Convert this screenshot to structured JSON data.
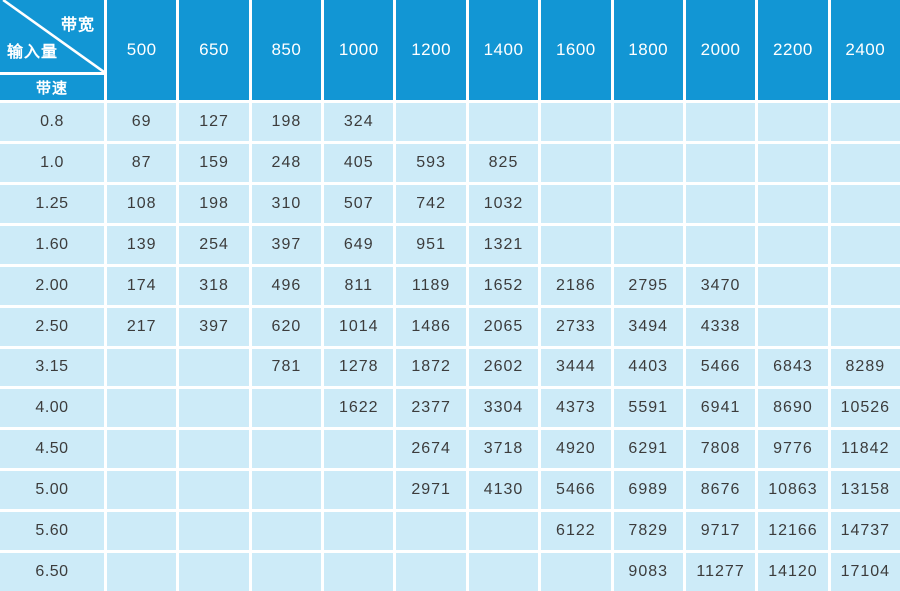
{
  "colors": {
    "header_bg": "#1296d4",
    "cell_bg": "#cdebf8",
    "grid": "#ffffff",
    "header_text": "#ffffff",
    "cell_text": "#3c3c3c"
  },
  "chart_data": {
    "type": "table",
    "title": "",
    "corner": {
      "top_right": "带宽",
      "bottom_left": "输入量",
      "sub_row": "带速"
    },
    "columns": [
      "500",
      "650",
      "850",
      "1000",
      "1200",
      "1400",
      "1600",
      "1800",
      "2000",
      "2200",
      "2400"
    ],
    "rows": [
      {
        "label": "0.8",
        "values": [
          "69",
          "127",
          "198",
          "324",
          "",
          "",
          "",
          "",
          "",
          "",
          ""
        ]
      },
      {
        "label": "1.0",
        "values": [
          "87",
          "159",
          "248",
          "405",
          "593",
          "825",
          "",
          "",
          "",
          "",
          ""
        ]
      },
      {
        "label": "1.25",
        "values": [
          "108",
          "198",
          "310",
          "507",
          "742",
          "1032",
          "",
          "",
          "",
          "",
          ""
        ]
      },
      {
        "label": "1.60",
        "values": [
          "139",
          "254",
          "397",
          "649",
          "951",
          "1321",
          "",
          "",
          "",
          "",
          ""
        ]
      },
      {
        "label": "2.00",
        "values": [
          "174",
          "318",
          "496",
          "811",
          "1189",
          "1652",
          "2186",
          "2795",
          "3470",
          "",
          ""
        ]
      },
      {
        "label": "2.50",
        "values": [
          "217",
          "397",
          "620",
          "1014",
          "1486",
          "2065",
          "2733",
          "3494",
          "4338",
          "",
          ""
        ]
      },
      {
        "label": "3.15",
        "values": [
          "",
          "",
          "781",
          "1278",
          "1872",
          "2602",
          "3444",
          "4403",
          "5466",
          "6843",
          "8289"
        ]
      },
      {
        "label": "4.00",
        "values": [
          "",
          "",
          "",
          "1622",
          "2377",
          "3304",
          "4373",
          "5591",
          "6941",
          "8690",
          "10526"
        ]
      },
      {
        "label": "4.50",
        "values": [
          "",
          "",
          "",
          "",
          "2674",
          "3718",
          "4920",
          "6291",
          "7808",
          "9776",
          "11842"
        ]
      },
      {
        "label": "5.00",
        "values": [
          "",
          "",
          "",
          "",
          "2971",
          "4130",
          "5466",
          "6989",
          "8676",
          "10863",
          "13158"
        ]
      },
      {
        "label": "5.60",
        "values": [
          "",
          "",
          "",
          "",
          "",
          "",
          "6122",
          "7829",
          "9717",
          "12166",
          "14737"
        ]
      },
      {
        "label": "6.50",
        "values": [
          "",
          "",
          "",
          "",
          "",
          "",
          "",
          "9083",
          "11277",
          "14120",
          "17104"
        ]
      }
    ]
  }
}
